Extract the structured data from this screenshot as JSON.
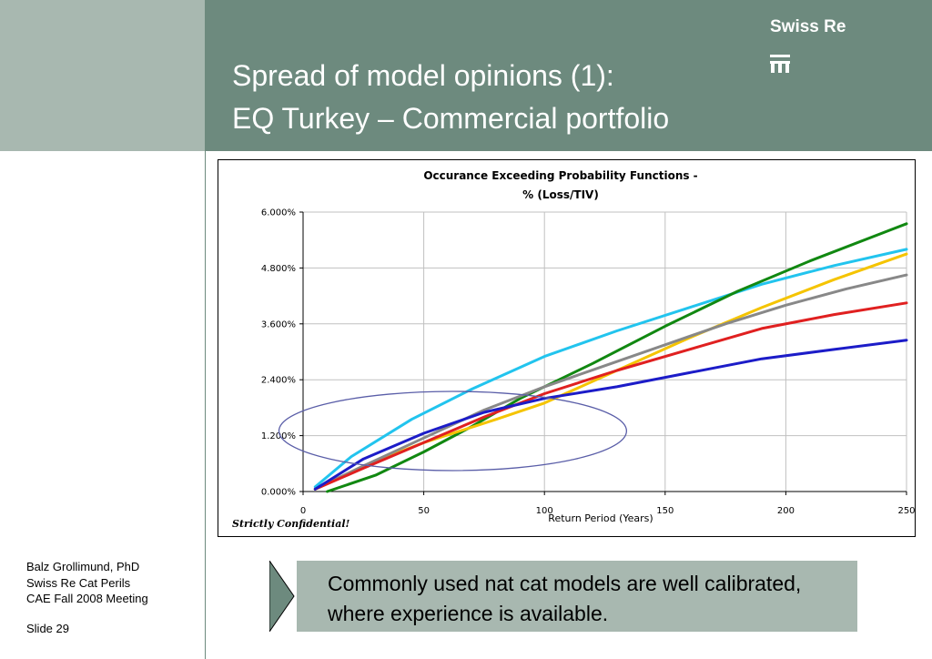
{
  "slide": {
    "title_line1": "Spread of model opinions (1):",
    "title_line2": "EQ Turkey – Commercial portfolio",
    "brand": "Swiss Re",
    "author": "Balz Grollimund, PhD",
    "org": "Swiss Re Cat Perils",
    "event": "CAE Fall 2008 Meeting",
    "slide_number": "Slide 29",
    "callout": "Commonly used nat cat models are well calibrated, where experience is available."
  },
  "colors": {
    "header_band": "#6d8a7e",
    "left_band": "#a8b8b0",
    "callout_bg": "#a8b8b0",
    "callout_arrow": "#6d8a7e",
    "highlight_ellipse": "#5a5ea8"
  },
  "chart_data": {
    "type": "line",
    "title": "Occurance Exceeding Probability Functions -",
    "subtitle": "% (Loss/TIV)",
    "xlabel": "Return Period (Years)",
    "ylabel": "",
    "xlim": [
      0,
      250
    ],
    "ylim": [
      0,
      6
    ],
    "x_ticks": [
      "0",
      "50",
      "100",
      "150",
      "200",
      "250"
    ],
    "y_ticks": [
      "0.000%",
      "1.200%",
      "2.400%",
      "3.600%",
      "4.800%",
      "6.000%"
    ],
    "grid": true,
    "legend": "none",
    "stamp": "Strictly Confidential!",
    "series": [
      {
        "color": "#22c4ee",
        "x": [
          5,
          20,
          45,
          70,
          100,
          130,
          160,
          190,
          220,
          250
        ],
        "y": [
          0.1,
          0.75,
          1.55,
          2.2,
          2.9,
          3.45,
          3.95,
          4.45,
          4.85,
          5.2
        ]
      },
      {
        "color": "#118811",
        "x": [
          10,
          30,
          50,
          70,
          90,
          120,
          150,
          180,
          210,
          250
        ],
        "y": [
          0.0,
          0.35,
          0.85,
          1.4,
          2.0,
          2.75,
          3.55,
          4.3,
          4.95,
          5.75
        ]
      },
      {
        "color": "#f5c400",
        "x": [
          5,
          25,
          50,
          80,
          100,
          130,
          160,
          190,
          220,
          250
        ],
        "y": [
          0.05,
          0.55,
          1.05,
          1.55,
          1.9,
          2.6,
          3.3,
          3.95,
          4.55,
          5.1
        ]
      },
      {
        "color": "#888888",
        "x": [
          5,
          25,
          50,
          75,
          100,
          125,
          150,
          175,
          200,
          225,
          250
        ],
        "y": [
          0.05,
          0.55,
          1.15,
          1.75,
          2.25,
          2.7,
          3.15,
          3.6,
          4.0,
          4.35,
          4.65
        ]
      },
      {
        "color": "#e02020",
        "x": [
          5,
          25,
          50,
          75,
          100,
          130,
          160,
          190,
          220,
          250
        ],
        "y": [
          0.05,
          0.5,
          1.05,
          1.6,
          2.1,
          2.6,
          3.05,
          3.5,
          3.8,
          4.05
        ]
      },
      {
        "color": "#1c1cc8",
        "x": [
          5,
          25,
          50,
          75,
          100,
          130,
          160,
          190,
          220,
          250
        ],
        "y": [
          0.05,
          0.7,
          1.25,
          1.7,
          2.0,
          2.25,
          2.55,
          2.85,
          3.05,
          3.25
        ]
      }
    ],
    "annotation": {
      "shape": "ellipse",
      "cx": 62,
      "cy": 1.3,
      "rx": 72,
      "ry": 0.85,
      "color": "#5a5ea8"
    }
  }
}
